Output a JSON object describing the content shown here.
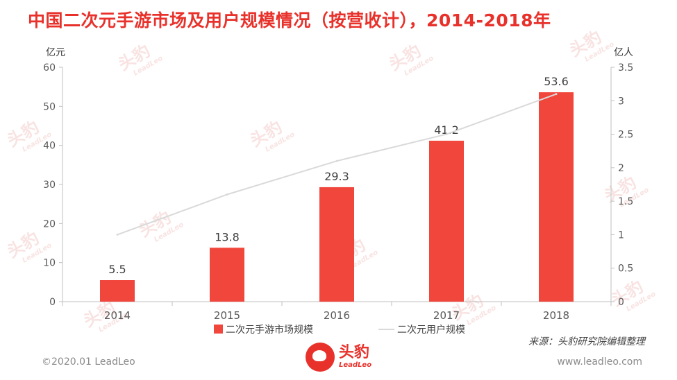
{
  "title": "中国二次元手游市场及用户规模情况（按营收计），2014-2018年",
  "colors": {
    "accent": "#e8312b",
    "bar": "#f0463c",
    "line": "#d9d9d9"
  },
  "chart_data": {
    "type": "bar",
    "categories": [
      "2014",
      "2015",
      "2016",
      "2017",
      "2018"
    ],
    "series": [
      {
        "name": "二次元手游市场规模",
        "type": "bar",
        "axis": "left",
        "values": [
          5.5,
          13.8,
          29.3,
          41.2,
          53.6
        ]
      },
      {
        "name": "二次元用户规模",
        "type": "line",
        "axis": "right",
        "values": [
          1.0,
          1.6,
          2.1,
          2.5,
          3.1
        ]
      }
    ],
    "ylabel_left": "亿元",
    "ylabel_right": "亿人",
    "ylim_left": [
      0,
      60
    ],
    "yticks_left": [
      "0",
      "10",
      "20",
      "30",
      "40",
      "50",
      "60"
    ],
    "ylim_right": [
      0,
      3.5
    ],
    "yticks_right": [
      "0",
      "0.5",
      "1",
      "1.5",
      "2",
      "2.5",
      "3",
      "3.5"
    ],
    "data_labels": [
      "5.5",
      "13.8",
      "29.3",
      "41.2",
      "53.6"
    ],
    "grid": false,
    "legend_position": "bottom"
  },
  "source": "来源：头豹研究院编辑整理",
  "footer": {
    "copyright": "©2020.01 LeadLeo",
    "website": "www.leadleo.com",
    "brand_name": "头豹",
    "brand_sub": "LeadLeo"
  },
  "watermark": {
    "name": "头豹",
    "sub": "LeadLeo"
  }
}
